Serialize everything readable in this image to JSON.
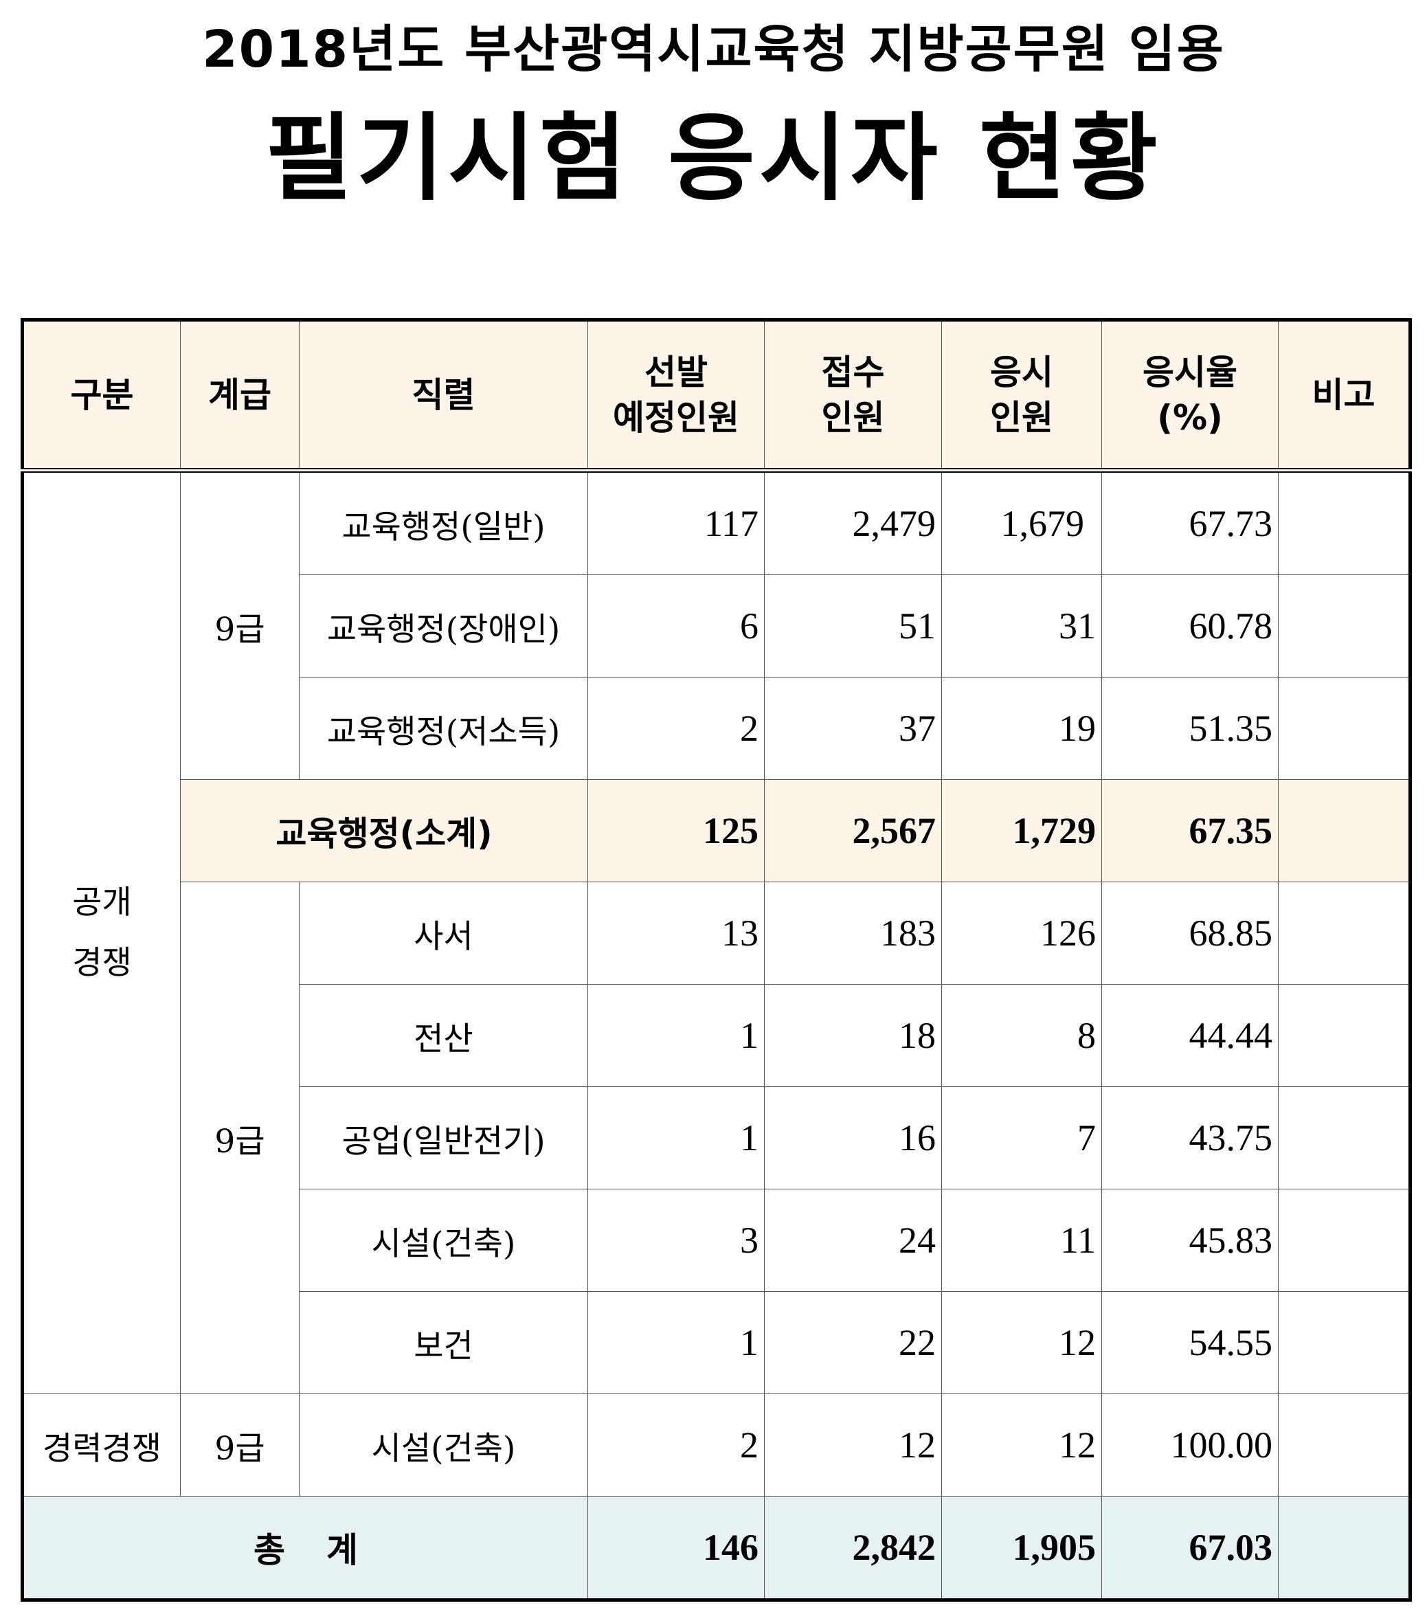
{
  "title": {
    "line1": "2018년도 부산광역시교육청 지방공무원 임용",
    "line2": "필기시험 응시자 현황"
  },
  "headers": {
    "category": "구분",
    "grade": "계급",
    "position": "직렬",
    "planned_1": "선발",
    "planned_2": "예정인원",
    "applied_1": "접수",
    "applied_2": "인원",
    "examinees_1": "응시",
    "examinees_2": "인원",
    "rate_1": "응시율",
    "rate_2": "(%)",
    "remarks": "비고"
  },
  "groups": {
    "open_competition_1": "공개",
    "open_competition_2": "경쟁",
    "career_competition": "경력경쟁",
    "grade_a": "9급",
    "grade_b": "9급",
    "grade_c": "9급"
  },
  "rows": [
    {
      "position": "교육행정(일반)",
      "planned": "117",
      "applied": "2,479",
      "examinees": "1,679",
      "rate": "67.73",
      "remarks": ""
    },
    {
      "position": "교육행정(장애인)",
      "planned": "6",
      "applied": "51",
      "examinees": "31",
      "rate": "60.78",
      "remarks": ""
    },
    {
      "position": "교육행정(저소득)",
      "planned": "2",
      "applied": "37",
      "examinees": "19",
      "rate": "51.35",
      "remarks": ""
    },
    {
      "position": "사서",
      "planned": "13",
      "applied": "183",
      "examinees": "126",
      "rate": "68.85",
      "remarks": ""
    },
    {
      "position": "전산",
      "planned": "1",
      "applied": "18",
      "examinees": "8",
      "rate": "44.44",
      "remarks": ""
    },
    {
      "position": "공업(일반전기)",
      "planned": "1",
      "applied": "16",
      "examinees": "7",
      "rate": "43.75",
      "remarks": ""
    },
    {
      "position": "시설(건축)",
      "planned": "3",
      "applied": "24",
      "examinees": "11",
      "rate": "45.83",
      "remarks": ""
    },
    {
      "position": "보건",
      "planned": "1",
      "applied": "22",
      "examinees": "12",
      "rate": "54.55",
      "remarks": ""
    },
    {
      "position": "시설(건축)",
      "planned": "2",
      "applied": "12",
      "examinees": "12",
      "rate": "100.00",
      "remarks": ""
    }
  ],
  "subtotal": {
    "label": "교육행정(소계)",
    "planned": "125",
    "applied": "2,567",
    "examinees": "1,729",
    "rate": "67.35",
    "remarks": ""
  },
  "total": {
    "label": "총계",
    "planned": "146",
    "applied": "2,842",
    "examinees": "1,905",
    "rate": "67.03",
    "remarks": ""
  }
}
